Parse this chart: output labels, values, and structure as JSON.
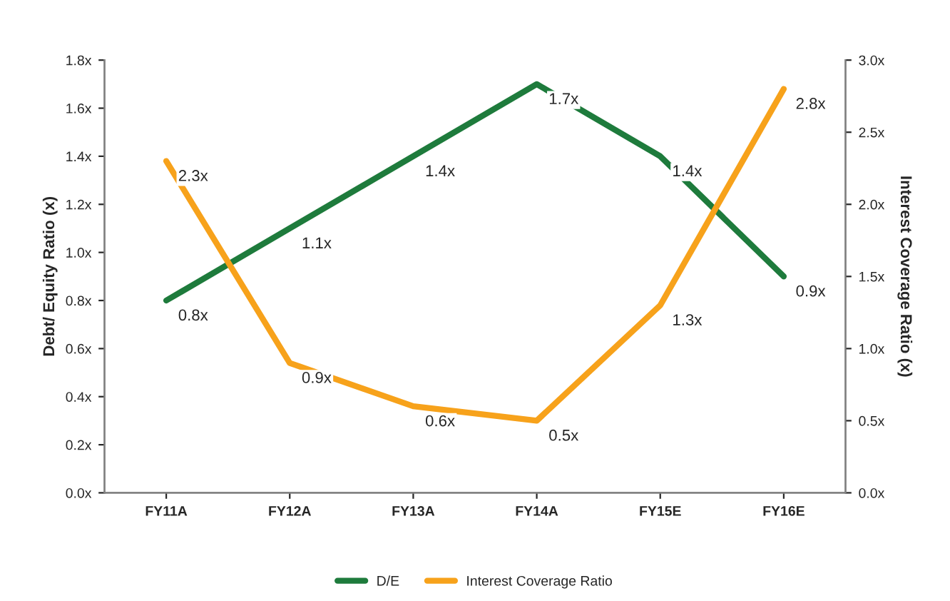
{
  "chart_data": {
    "type": "line",
    "categories": [
      "FY11A",
      "FY12A",
      "FY13A",
      "FY14A",
      "FY15E",
      "FY16E"
    ],
    "ylabel": "Debt/ Equity Ratio (x)",
    "y2label": "Interest Coverage Ratio (x)",
    "series": [
      {
        "name": "D/E",
        "color": "#1e7b3c",
        "values": [
          0.8,
          1.1,
          1.4,
          1.7,
          1.4,
          0.9
        ],
        "value_labels": [
          "0.8x",
          "1.1x",
          "1.4x",
          "1.7x",
          "1.4x",
          "0.9x"
        ]
      },
      {
        "name": "Interest Coverage Ratio",
        "color": "#f7a21b",
        "axis": "y2",
        "values": [
          2.3,
          0.9,
          0.6,
          0.5,
          1.3,
          2.8
        ],
        "value_labels": [
          "2.3x",
          "0.9x",
          "0.6x",
          "0.5x",
          "1.3x",
          "2.8x"
        ]
      }
    ],
    "ylim": [
      0,
      1.8
    ],
    "yticks": [
      {
        "value": 0,
        "label": "0.0x"
      },
      {
        "value": 0.2,
        "label": "0.2x"
      },
      {
        "value": 0.4,
        "label": "0.4x"
      },
      {
        "value": 0.6,
        "label": "0.6x"
      },
      {
        "value": 0.8,
        "label": "0.8x"
      },
      {
        "value": 1.0,
        "label": "1.0x"
      },
      {
        "value": 1.2,
        "label": "1.2x"
      },
      {
        "value": 1.4,
        "label": "1.4x"
      },
      {
        "value": 1.6,
        "label": "1.6x"
      },
      {
        "value": 1.8,
        "label": "1.8x"
      }
    ],
    "y2lim": [
      0,
      3.0
    ],
    "y2ticks": [
      {
        "value": 0,
        "label": "0.0x"
      },
      {
        "value": 0.5,
        "label": "0.5x"
      },
      {
        "value": 1.0,
        "label": "1.0x"
      },
      {
        "value": 1.5,
        "label": "1.5x"
      },
      {
        "value": 2.0,
        "label": "2.0x"
      },
      {
        "value": 2.5,
        "label": "2.5x"
      },
      {
        "value": 3.0,
        "label": "3.0x"
      }
    ],
    "grid": false,
    "legend": "bottom",
    "marker": "none",
    "line_style": "solid"
  }
}
